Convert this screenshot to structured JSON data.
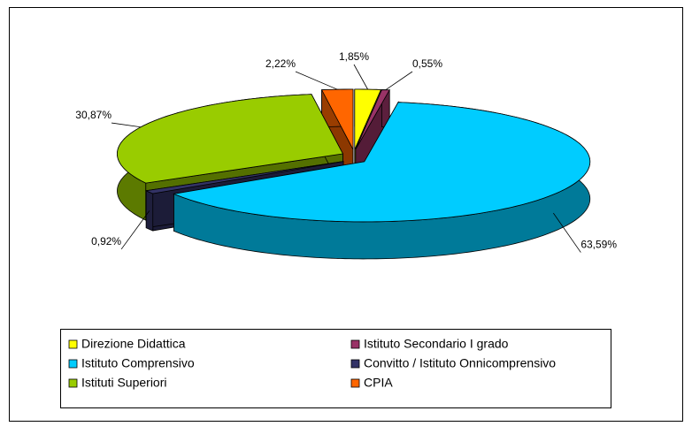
{
  "chart_data": {
    "type": "pie3d",
    "categories": [
      "Direzione Didattica",
      "Istituto Secondario I grado",
      "Istituto Comprensivo",
      "Convitto / Istituto Onnicomprensivo",
      "Istituti Superiori",
      "CPIA"
    ],
    "values": [
      1.85,
      0.55,
      63.59,
      0.92,
      30.87,
      2.22
    ],
    "value_labels": [
      "1,85%",
      "0,55%",
      "63,59%",
      "0,92%",
      "30,87%",
      "2,22%"
    ],
    "colors": [
      "#ffff00",
      "#993366",
      "#00ccff",
      "#333366",
      "#99cc00",
      "#ff6600"
    ],
    "legend": "bottom"
  }
}
